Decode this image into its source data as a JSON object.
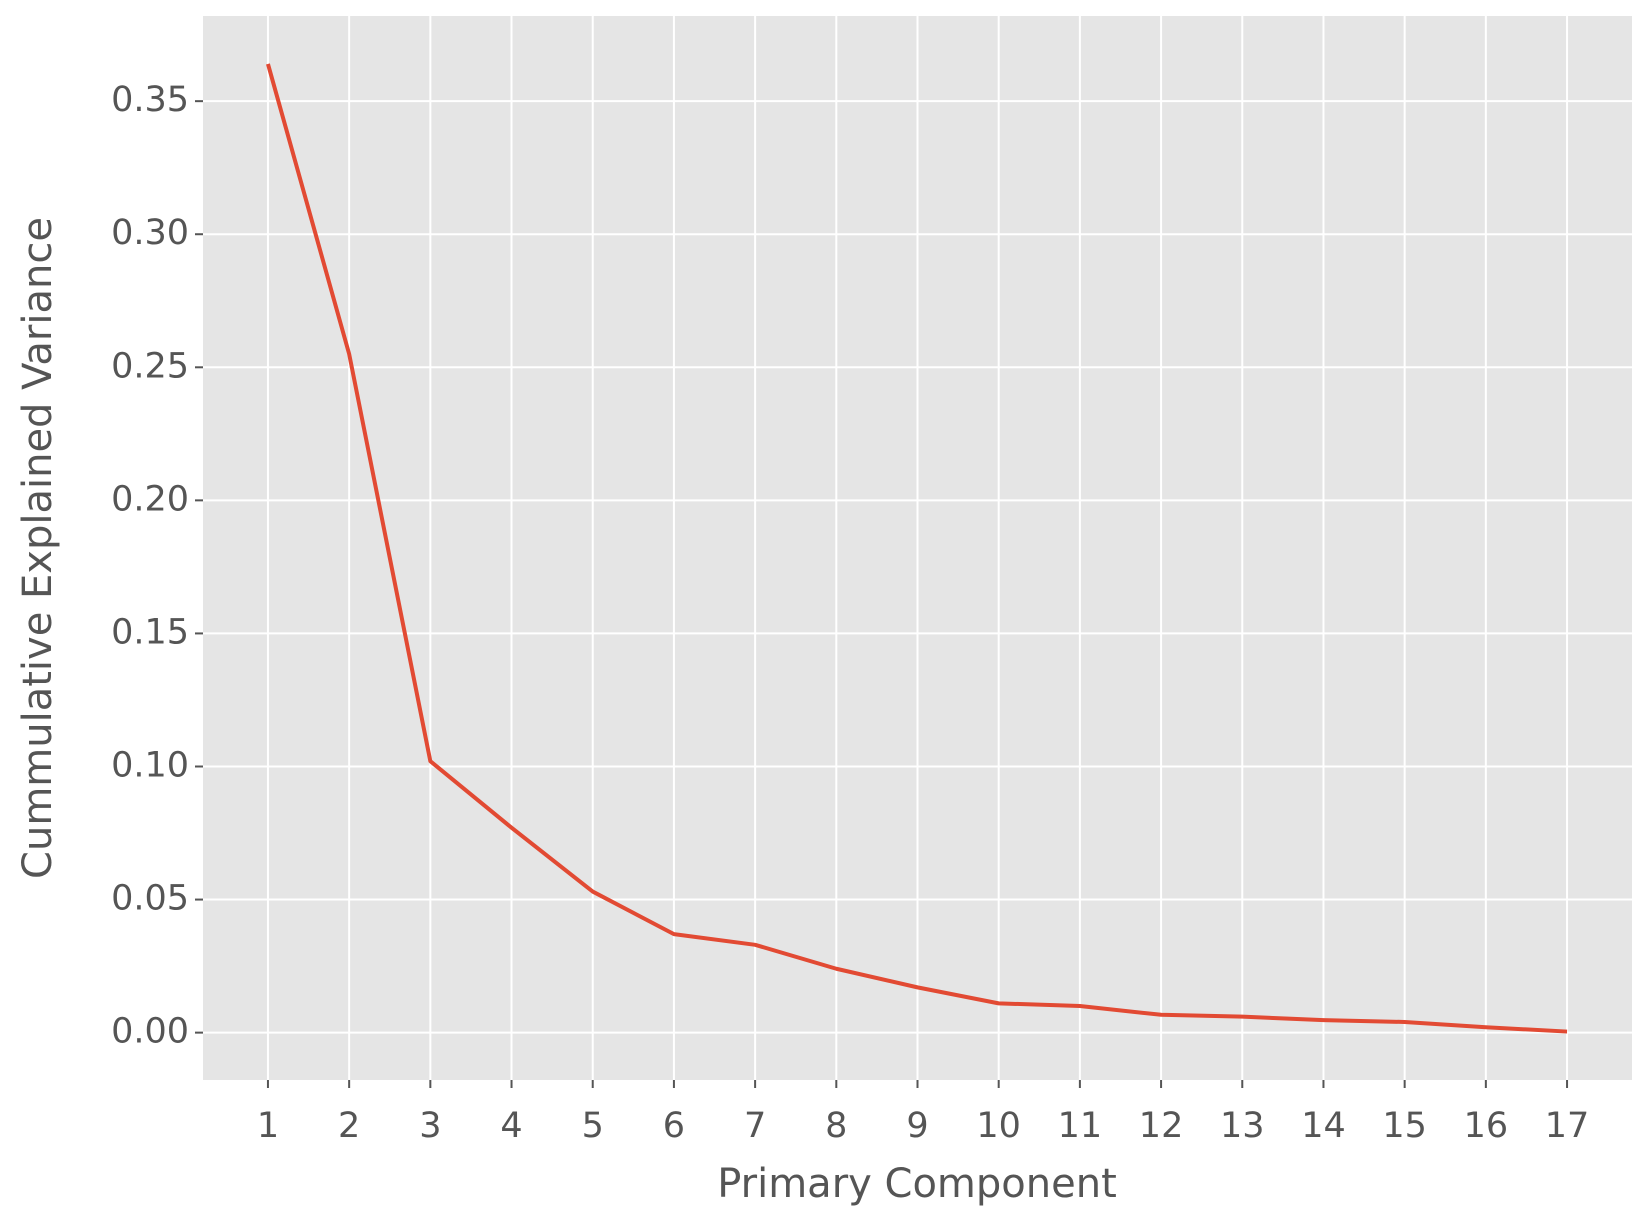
{
  "chart_data": {
    "type": "line",
    "x_label": "Primary Component",
    "y_label": "Cummulative Explained Variance",
    "x": [
      1,
      2,
      3,
      4,
      5,
      6,
      7,
      8,
      9,
      10,
      11,
      12,
      13,
      14,
      15,
      16,
      17
    ],
    "series": [
      {
        "color": "#e24a33",
        "values": [
          0.364,
          0.255,
          0.102,
          0.077,
          0.053,
          0.037,
          0.033,
          0.024,
          0.017,
          0.011,
          0.01,
          0.0067,
          0.006,
          0.0047,
          0.004,
          0.002,
          0.0004
        ]
      }
    ],
    "xlim": [
      0.2,
      17.8
    ],
    "xticks": [
      1,
      2,
      3,
      4,
      5,
      6,
      7,
      8,
      9,
      10,
      11,
      12,
      13,
      14,
      15,
      16,
      17
    ],
    "ylim": [
      -0.0178,
      0.382
    ],
    "yticks": [
      {
        "value": 0,
        "label": "0.00"
      },
      0.05,
      {
        "value": 0.1,
        "label": "0.10"
      },
      0.15,
      {
        "value": 0.2,
        "label": "0.20"
      },
      0.25,
      {
        "value": 0.3,
        "label": "0.30"
      },
      0.35
    ],
    "grid": true,
    "background": "#e5e5e5"
  }
}
